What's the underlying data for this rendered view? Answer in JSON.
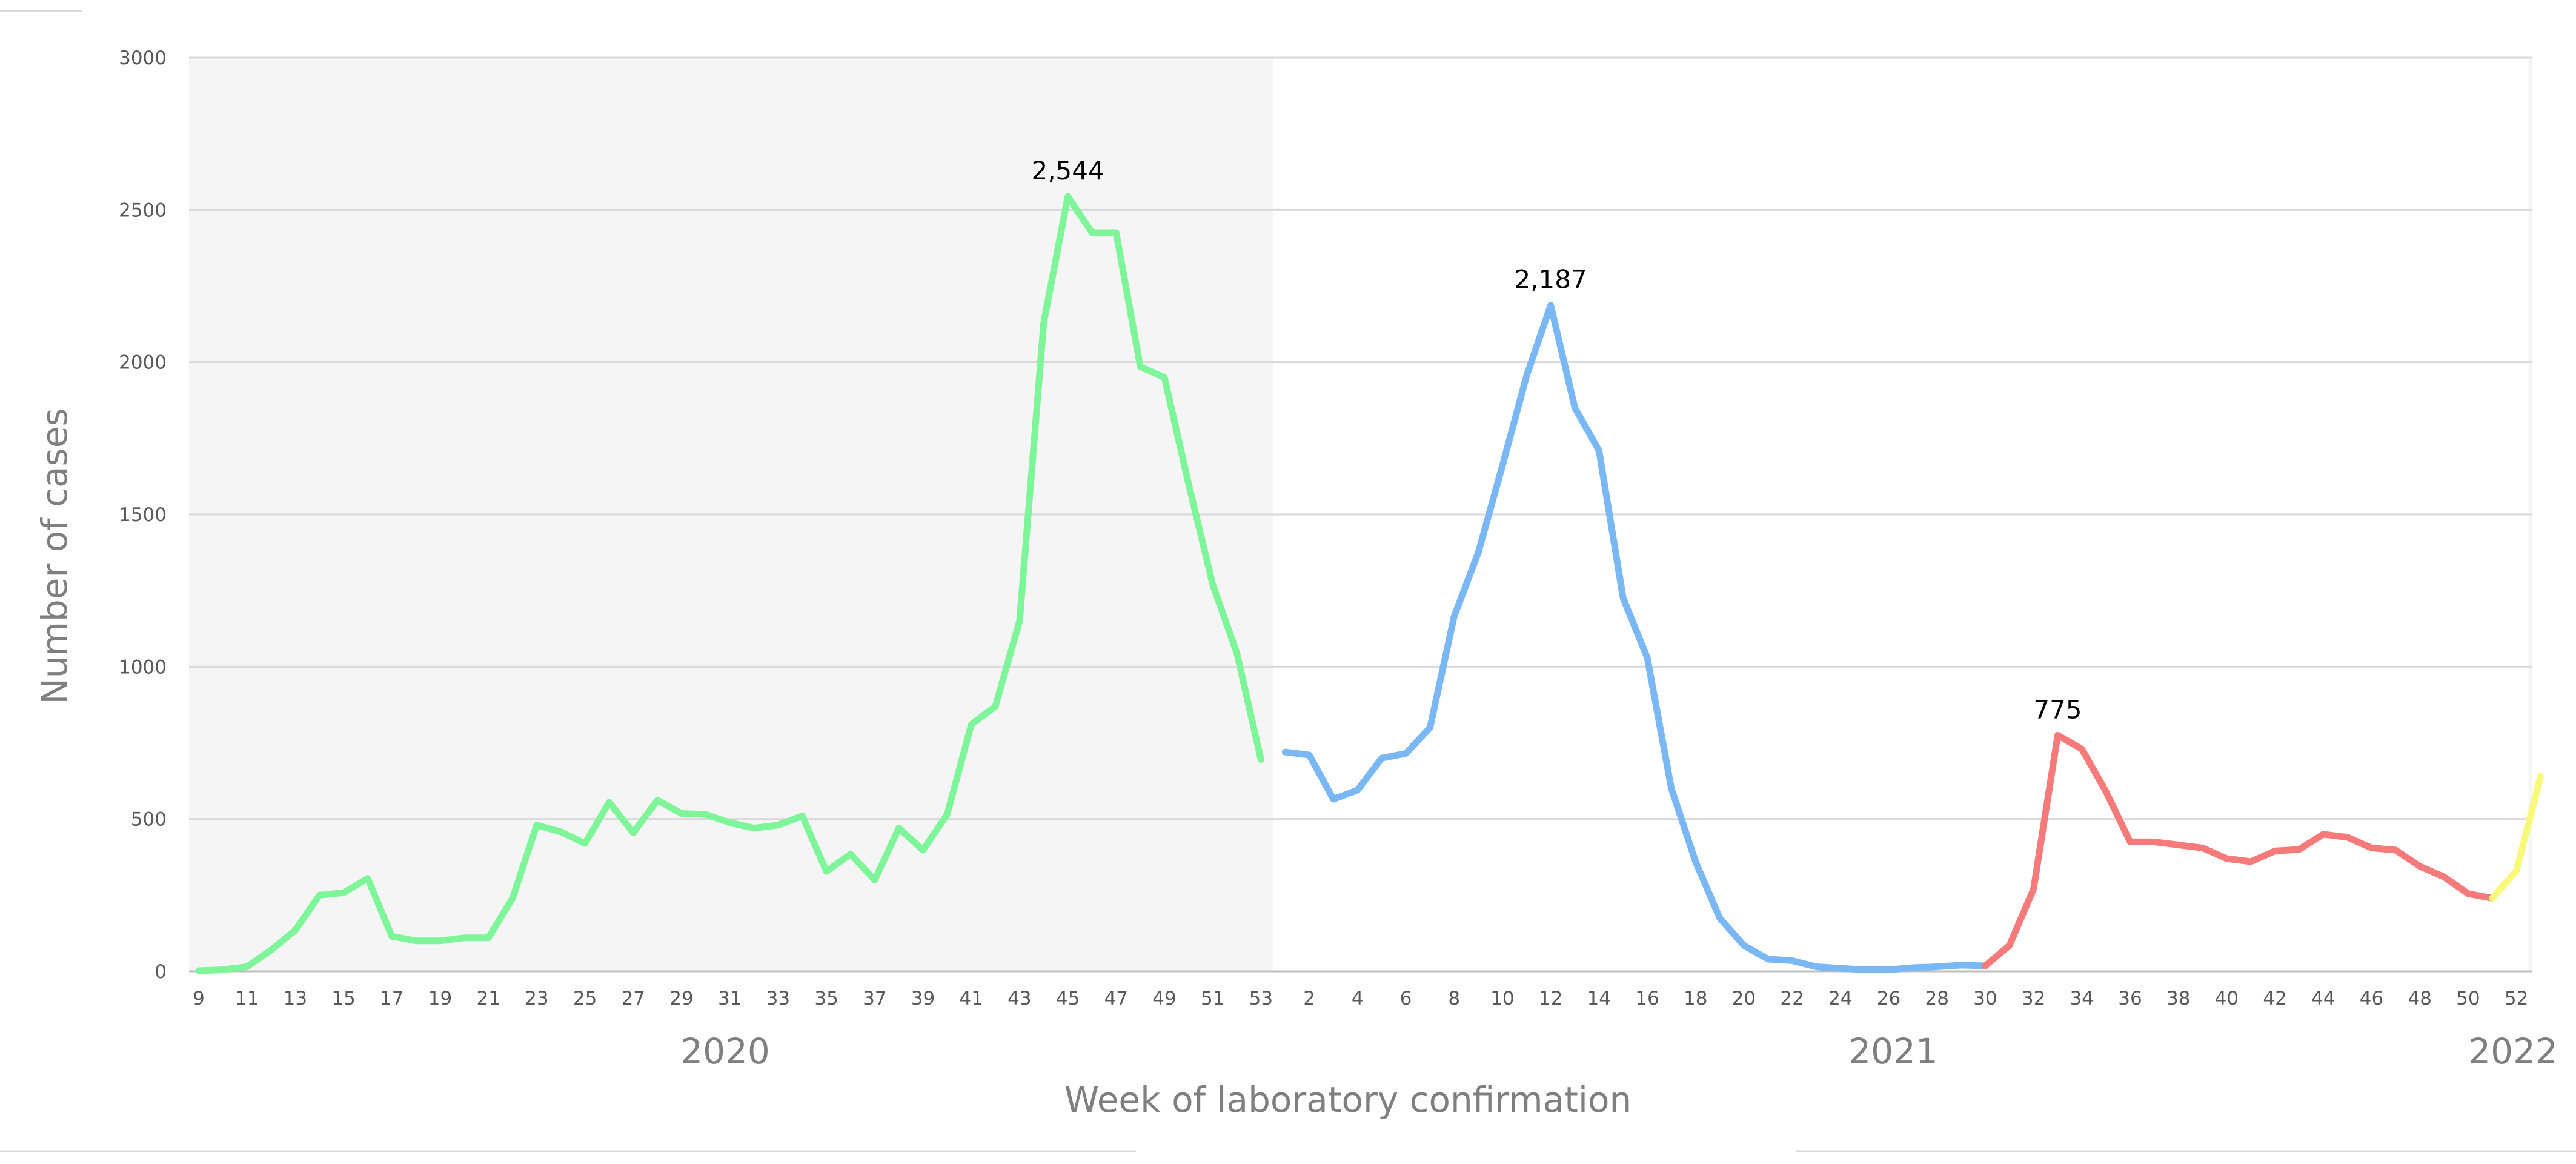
{
  "chart_data": {
    "type": "line",
    "title": "",
    "xlabel": "Week of laboratory confirmation",
    "ylabel": "Number of cases",
    "ylim": [
      0,
      3000
    ],
    "yticks": [
      0,
      500,
      1000,
      1500,
      2000,
      2500,
      3000
    ],
    "grid": true,
    "legend": "none",
    "year_labels": [
      "2020",
      "2021",
      "2022"
    ],
    "shaded_years": [
      "2020",
      "2022"
    ],
    "shade_color": "#f5f5f5",
    "x_tick_labels": {
      "2020": [
        "9",
        "11",
        "13",
        "15",
        "17",
        "19",
        "21",
        "23",
        "25",
        "27",
        "29",
        "31",
        "33",
        "35",
        "37",
        "39",
        "41",
        "43",
        "45",
        "47",
        "49",
        "51",
        "53"
      ],
      "2021": [
        "2",
        "4",
        "6",
        "8",
        "10",
        "12",
        "14",
        "16",
        "18",
        "20",
        "22",
        "24",
        "26",
        "28",
        "30",
        "32",
        "34",
        "36",
        "38",
        "40",
        "42",
        "44",
        "46",
        "48",
        "50",
        "52"
      ]
    },
    "series": [
      {
        "color": "#7ff59a",
        "year": "2020",
        "weeks": [
          9,
          10,
          11,
          12,
          13,
          14,
          15,
          16,
          17,
          18,
          19,
          20,
          21,
          22,
          23,
          24,
          25,
          26,
          27,
          28,
          29,
          30,
          31,
          32,
          33,
          34,
          35,
          36,
          37,
          38,
          39,
          40,
          41,
          42,
          43,
          44,
          45,
          46,
          47,
          48,
          49,
          50,
          51,
          52,
          53
        ],
        "values": [
          2,
          5,
          15,
          70,
          135,
          250,
          258,
          305,
          115,
          100,
          100,
          110,
          110,
          240,
          480,
          458,
          420,
          555,
          455,
          562,
          518,
          515,
          488,
          470,
          480,
          510,
          328,
          385,
          300,
          470,
          398,
          515,
          810,
          870,
          1150,
          2130,
          2544,
          2425,
          2425,
          1985,
          1950,
          1600,
          1270,
          1045,
          695
        ]
      },
      {
        "color": "#7ab8f5",
        "year": "2021",
        "weeks": [
          1,
          2,
          3,
          4,
          5,
          6,
          7,
          8,
          9,
          10,
          11,
          12,
          13,
          14,
          15,
          16,
          17,
          18,
          19,
          20,
          21,
          22,
          23,
          24,
          25,
          26,
          27,
          28,
          29,
          30
        ],
        "values": [
          720,
          710,
          565,
          595,
          700,
          715,
          800,
          1165,
          1375,
          1660,
          1955,
          2187,
          1850,
          1710,
          1225,
          1030,
          600,
          360,
          175,
          85,
          40,
          35,
          15,
          10,
          5,
          5,
          12,
          15,
          20,
          18
        ]
      },
      {
        "color": "#f77a7a",
        "year": "2021",
        "weeks": [
          30,
          31,
          32,
          33,
          34,
          35,
          36,
          37,
          38,
          39,
          40,
          41,
          42,
          43,
          44,
          45,
          46,
          47,
          48,
          49,
          50,
          51
        ],
        "values": [
          18,
          85,
          270,
          775,
          730,
          590,
          425,
          425,
          415,
          405,
          370,
          360,
          395,
          400,
          450,
          440,
          405,
          398,
          345,
          310,
          255,
          240
        ]
      },
      {
        "color": "#f8f87a",
        "year": "2021-2022",
        "weeks": [
          51,
          52,
          "2022-1"
        ],
        "values": [
          240,
          330,
          640
        ]
      }
    ],
    "annotations": [
      {
        "text": "2,544",
        "year": "2020",
        "week": 45,
        "value": 2544
      },
      {
        "text": "2,187",
        "year": "2021",
        "week": 12,
        "value": 2187
      },
      {
        "text": "775",
        "year": "2021",
        "week": 33,
        "value": 775
      }
    ]
  }
}
